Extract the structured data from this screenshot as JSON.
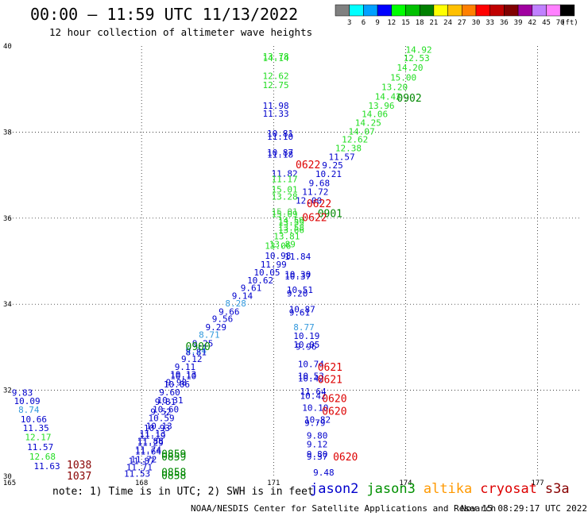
{
  "title": "00:00 – 11:59 UTC 11/13/2022",
  "subtitle": "12 hour collection of altimeter wave heights",
  "legend": {
    "ticks": [
      "3",
      "6",
      "9",
      "12",
      "15",
      "18",
      "21",
      "24",
      "27",
      "30",
      "33",
      "36",
      "39",
      "42",
      "45",
      "70"
    ],
    "unit": "(ft)",
    "colors": [
      "#808080",
      "#00ffff",
      "#00a0ff",
      "#0000ff",
      "#00ff00",
      "#00c000",
      "#008000",
      "#ffff00",
      "#ffc000",
      "#ff8000",
      "#ff0000",
      "#c00000",
      "#800000",
      "#a000a0",
      "#c080ff",
      "#ff80ff",
      "#000000"
    ]
  },
  "note": "note: 1) Time is in UTC; 2) SWH is in feet",
  "sources": [
    {
      "name": "jason2",
      "color": "#0000cc"
    },
    {
      "name": "jason3",
      "color": "#009000"
    },
    {
      "name": "altika",
      "color": "#ff9900"
    },
    {
      "name": "cryosat",
      "color": "#dd0000"
    },
    {
      "name": "s3a",
      "color": "#880000"
    }
  ],
  "footer_left": "NOAA/NESDIS Center for Satellite Applications and Research",
  "footer_right": "Nov 15 08:29:17 UTC 2022",
  "chart_data": {
    "type": "scatter",
    "xlim": [
      165,
      178
    ],
    "ylim": [
      30,
      40
    ],
    "x_ticks": [
      "165",
      "168",
      "171",
      "174",
      "177"
    ],
    "y_ticks": [
      "30",
      "32",
      "34",
      "36",
      "38",
      "40"
    ],
    "grid": true,
    "colors": {
      "12": "#0000cc",
      "13": "#3399dd",
      "15": "#22dd22",
      "18": "#55cc55",
      "21": "#008800",
      "30": "#dd0000",
      "36": "#880000"
    },
    "labels": [
      {
        "x": 170.75,
        "y": 39.76,
        "t": "13.78",
        "c": "15"
      },
      {
        "x": 170.75,
        "y": 39.72,
        "t": "14.14",
        "c": "15"
      },
      {
        "x": 170.75,
        "y": 39.31,
        "t": "12.62",
        "c": "15"
      },
      {
        "x": 170.75,
        "y": 39.1,
        "t": "12.75",
        "c": "15"
      },
      {
        "x": 170.75,
        "y": 38.62,
        "t": "11.98",
        "c": "12"
      },
      {
        "x": 170.75,
        "y": 38.43,
        "t": "11.33",
        "c": "12"
      },
      {
        "x": 170.85,
        "y": 37.97,
        "t": "10.81",
        "c": "12"
      },
      {
        "x": 170.85,
        "y": 37.9,
        "t": "11.10",
        "c": "12"
      },
      {
        "x": 170.85,
        "y": 37.53,
        "t": "10.87",
        "c": "12"
      },
      {
        "x": 170.85,
        "y": 37.48,
        "t": "11.18",
        "c": "12"
      },
      {
        "x": 170.95,
        "y": 37.04,
        "t": "11.82",
        "c": "12"
      },
      {
        "x": 170.95,
        "y": 36.91,
        "t": "11.17",
        "c": "15"
      },
      {
        "x": 170.95,
        "y": 36.67,
        "t": "15.01",
        "c": "15"
      },
      {
        "x": 170.95,
        "y": 36.5,
        "t": "13.28",
        "c": "15"
      },
      {
        "x": 170.95,
        "y": 36.15,
        "t": "15.01",
        "c": "18"
      },
      {
        "x": 170.95,
        "y": 36.1,
        "t": "15.09",
        "c": "15"
      },
      {
        "x": 171.1,
        "y": 35.95,
        "t": "14.59",
        "c": "15"
      },
      {
        "x": 171.1,
        "y": 35.9,
        "t": "13.59",
        "c": "15"
      },
      {
        "x": 171.1,
        "y": 35.78,
        "t": "13.58",
        "c": "15"
      },
      {
        "x": 171.1,
        "y": 35.73,
        "t": "13.66",
        "c": "15"
      },
      {
        "x": 171.0,
        "y": 35.58,
        "t": "13.81",
        "c": "15"
      },
      {
        "x": 170.9,
        "y": 35.4,
        "t": "13.89",
        "c": "15"
      },
      {
        "x": 170.8,
        "y": 35.36,
        "t": "13.06",
        "c": "15"
      },
      {
        "x": 170.8,
        "y": 35.13,
        "t": "10.98",
        "c": "12"
      },
      {
        "x": 171.25,
        "y": 35.11,
        "t": "11.84",
        "c": "12"
      },
      {
        "x": 170.7,
        "y": 34.93,
        "t": "11.99",
        "c": "12"
      },
      {
        "x": 170.55,
        "y": 34.74,
        "t": "10.05",
        "c": "12"
      },
      {
        "x": 171.25,
        "y": 34.7,
        "t": "10.30",
        "c": "12"
      },
      {
        "x": 171.25,
        "y": 34.65,
        "t": "10.37",
        "c": "12"
      },
      {
        "x": 170.4,
        "y": 34.56,
        "t": "10.62",
        "c": "12"
      },
      {
        "x": 170.25,
        "y": 34.38,
        "t": "9.61",
        "c": "12"
      },
      {
        "x": 171.3,
        "y": 34.34,
        "t": "10.51",
        "c": "12"
      },
      {
        "x": 170.05,
        "y": 34.2,
        "t": "9.14",
        "c": "12"
      },
      {
        "x": 171.3,
        "y": 34.25,
        "t": "9.20",
        "c": "12"
      },
      {
        "x": 169.9,
        "y": 34.02,
        "t": "8.28",
        "c": "13"
      },
      {
        "x": 169.75,
        "y": 33.83,
        "t": "9.66",
        "c": "12"
      },
      {
        "x": 171.35,
        "y": 33.88,
        "t": "10.87",
        "c": "12"
      },
      {
        "x": 171.35,
        "y": 33.81,
        "t": "9.61",
        "c": "12"
      },
      {
        "x": 169.6,
        "y": 33.66,
        "t": "9.56",
        "c": "12"
      },
      {
        "x": 169.45,
        "y": 33.47,
        "t": "9.29",
        "c": "12"
      },
      {
        "x": 171.45,
        "y": 33.47,
        "t": "8.77",
        "c": "13"
      },
      {
        "x": 169.3,
        "y": 33.29,
        "t": "8.71",
        "c": "13"
      },
      {
        "x": 171.45,
        "y": 33.27,
        "t": "10.19",
        "c": "12"
      },
      {
        "x": 169.15,
        "y": 33.09,
        "t": "9.25",
        "c": "12"
      },
      {
        "x": 171.45,
        "y": 33.06,
        "t": "10.05",
        "c": "12"
      },
      {
        "x": 171.5,
        "y": 33.02,
        "t": "9.96",
        "c": "12"
      },
      {
        "x": 169.0,
        "y": 32.92,
        "t": "9.24",
        "c": "13"
      },
      {
        "x": 169.0,
        "y": 32.89,
        "t": "8.81",
        "c": "12"
      },
      {
        "x": 168.9,
        "y": 32.73,
        "t": "9.12",
        "c": "12"
      },
      {
        "x": 168.75,
        "y": 32.55,
        "t": "9.11",
        "c": "12"
      },
      {
        "x": 171.55,
        "y": 32.61,
        "t": "10.74",
        "c": "12"
      },
      {
        "x": 168.65,
        "y": 32.37,
        "t": "10.13",
        "c": "12"
      },
      {
        "x": 171.55,
        "y": 32.33,
        "t": "10.53",
        "c": "12"
      },
      {
        "x": 171.55,
        "y": 32.28,
        "t": "10.42",
        "c": "12"
      },
      {
        "x": 168.65,
        "y": 32.33,
        "t": "10.10",
        "c": "12"
      },
      {
        "x": 168.55,
        "y": 32.19,
        "t": "9.98",
        "c": "12"
      },
      {
        "x": 168.5,
        "y": 32.14,
        "t": "10.06",
        "c": "12"
      },
      {
        "x": 168.4,
        "y": 31.96,
        "t": "9.60",
        "c": "12"
      },
      {
        "x": 171.6,
        "y": 31.97,
        "t": "11.64",
        "c": "12"
      },
      {
        "x": 171.6,
        "y": 31.87,
        "t": "10.42",
        "c": "12"
      },
      {
        "x": 168.35,
        "y": 31.77,
        "t": "10.31",
        "c": "12"
      },
      {
        "x": 168.3,
        "y": 31.73,
        "t": "9.81",
        "c": "12"
      },
      {
        "x": 168.25,
        "y": 31.56,
        "t": "10.60",
        "c": "12"
      },
      {
        "x": 171.65,
        "y": 31.6,
        "t": "10.10",
        "c": "12"
      },
      {
        "x": 168.2,
        "y": 31.5,
        "t": "9.52",
        "c": "12"
      },
      {
        "x": 168.15,
        "y": 31.36,
        "t": "10.59",
        "c": "12"
      },
      {
        "x": 171.7,
        "y": 31.32,
        "t": "10.82",
        "c": "12"
      },
      {
        "x": 171.7,
        "y": 31.25,
        "t": "9.79",
        "c": "12"
      },
      {
        "x": 168.1,
        "y": 31.17,
        "t": "10.13",
        "c": "12"
      },
      {
        "x": 168.05,
        "y": 31.13,
        "t": "10.93",
        "c": "12"
      },
      {
        "x": 167.95,
        "y": 31.0,
        "t": "11.13",
        "c": "12"
      },
      {
        "x": 167.95,
        "y": 30.95,
        "t": "11.19",
        "c": "12"
      },
      {
        "x": 171.75,
        "y": 30.95,
        "t": "9.80",
        "c": "12"
      },
      {
        "x": 167.9,
        "y": 30.82,
        "t": "11.88",
        "c": "12"
      },
      {
        "x": 167.9,
        "y": 30.78,
        "t": "11.29",
        "c": "12"
      },
      {
        "x": 171.75,
        "y": 30.75,
        "t": "9.12",
        "c": "12"
      },
      {
        "x": 167.85,
        "y": 30.62,
        "t": "11.74",
        "c": "12"
      },
      {
        "x": 167.85,
        "y": 30.58,
        "t": "11.64",
        "c": "12"
      },
      {
        "x": 171.75,
        "y": 30.52,
        "t": "9.80",
        "c": "12"
      },
      {
        "x": 171.75,
        "y": 30.46,
        "t": "9.37",
        "c": "12"
      },
      {
        "x": 167.75,
        "y": 30.4,
        "t": "11.72",
        "c": "12"
      },
      {
        "x": 167.7,
        "y": 30.36,
        "t": "11.87",
        "c": "12"
      },
      {
        "x": 167.65,
        "y": 30.21,
        "t": "11.71",
        "c": "12"
      },
      {
        "x": 167.6,
        "y": 30.06,
        "t": "11.53",
        "c": "12"
      },
      {
        "x": 171.9,
        "y": 30.09,
        "t": "9.48",
        "c": "12"
      },
      {
        "x": 165.05,
        "y": 31.95,
        "t": "9.83",
        "c": "12"
      },
      {
        "x": 165.1,
        "y": 31.75,
        "t": "10.09",
        "c": "12"
      },
      {
        "x": 165.2,
        "y": 31.55,
        "t": "8.74",
        "c": "13"
      },
      {
        "x": 165.25,
        "y": 31.33,
        "t": "10.66",
        "c": "12"
      },
      {
        "x": 165.3,
        "y": 31.13,
        "t": "11.35",
        "c": "12"
      },
      {
        "x": 165.35,
        "y": 30.91,
        "t": "12.17",
        "c": "15"
      },
      {
        "x": 165.4,
        "y": 30.68,
        "t": "11.57",
        "c": "12"
      },
      {
        "x": 165.45,
        "y": 30.46,
        "t": "12.68",
        "c": "15"
      },
      {
        "x": 165.55,
        "y": 30.24,
        "t": "11.63",
        "c": "12"
      },
      {
        "x": 174.0,
        "y": 39.92,
        "t": "14.92",
        "c": "15"
      },
      {
        "x": 173.95,
        "y": 39.72,
        "t": "12.53",
        "c": "15"
      },
      {
        "x": 173.8,
        "y": 39.5,
        "t": "14.20",
        "c": "15"
      },
      {
        "x": 173.65,
        "y": 39.27,
        "t": "15.00",
        "c": "15"
      },
      {
        "x": 173.45,
        "y": 39.05,
        "t": "13.20",
        "c": "15"
      },
      {
        "x": 173.3,
        "y": 38.83,
        "t": "14.42",
        "c": "15"
      },
      {
        "x": 173.15,
        "y": 38.62,
        "t": "13.96",
        "c": "15"
      },
      {
        "x": 173.0,
        "y": 38.42,
        "t": "14.06",
        "c": "15"
      },
      {
        "x": 172.85,
        "y": 38.22,
        "t": "14.25",
        "c": "15"
      },
      {
        "x": 172.7,
        "y": 38.02,
        "t": "14.07",
        "c": "15"
      },
      {
        "x": 172.55,
        "y": 37.83,
        "t": "12.62",
        "c": "15"
      },
      {
        "x": 172.4,
        "y": 37.63,
        "t": "12.38",
        "c": "15"
      },
      {
        "x": 172.25,
        "y": 37.43,
        "t": "11.57",
        "c": "12"
      },
      {
        "x": 172.1,
        "y": 37.23,
        "t": "9.25",
        "c": "12"
      },
      {
        "x": 171.95,
        "y": 37.03,
        "t": "10.21",
        "c": "12"
      },
      {
        "x": 171.8,
        "y": 36.82,
        "t": "9.68",
        "c": "12"
      },
      {
        "x": 171.65,
        "y": 36.61,
        "t": "11.72",
        "c": "12"
      },
      {
        "x": 171.5,
        "y": 36.41,
        "t": "12.00",
        "c": "12"
      }
    ],
    "times": [
      {
        "x": 173.8,
        "y": 38.8,
        "t": "0902",
        "c": "21"
      },
      {
        "x": 171.5,
        "y": 37.25,
        "t": "0622",
        "c": "30"
      },
      {
        "x": 171.75,
        "y": 36.35,
        "t": "0622",
        "c": "30"
      },
      {
        "x": 172.0,
        "y": 36.12,
        "t": "0901",
        "c": "21"
      },
      {
        "x": 171.65,
        "y": 36.02,
        "t": "0622",
        "c": "30"
      },
      {
        "x": 169.0,
        "y": 33.03,
        "t": "0900",
        "c": "21"
      },
      {
        "x": 172.0,
        "y": 32.55,
        "t": "0621",
        "c": "30"
      },
      {
        "x": 172.0,
        "y": 32.26,
        "t": "0621",
        "c": "30"
      },
      {
        "x": 172.1,
        "y": 31.82,
        "t": "0620",
        "c": "30"
      },
      {
        "x": 172.1,
        "y": 31.52,
        "t": "0620",
        "c": "30"
      },
      {
        "x": 172.35,
        "y": 30.46,
        "t": "0620",
        "c": "30"
      },
      {
        "x": 168.45,
        "y": 30.53,
        "t": "0859",
        "c": "21"
      },
      {
        "x": 168.45,
        "y": 30.46,
        "t": "0859",
        "c": "21"
      },
      {
        "x": 168.45,
        "y": 30.1,
        "t": "0858",
        "c": "21"
      },
      {
        "x": 168.45,
        "y": 30.03,
        "t": "0858",
        "c": "21"
      },
      {
        "x": 166.3,
        "y": 30.28,
        "t": "1038",
        "c": "36"
      },
      {
        "x": 166.3,
        "y": 30.02,
        "t": "1037",
        "c": "36"
      }
    ]
  }
}
